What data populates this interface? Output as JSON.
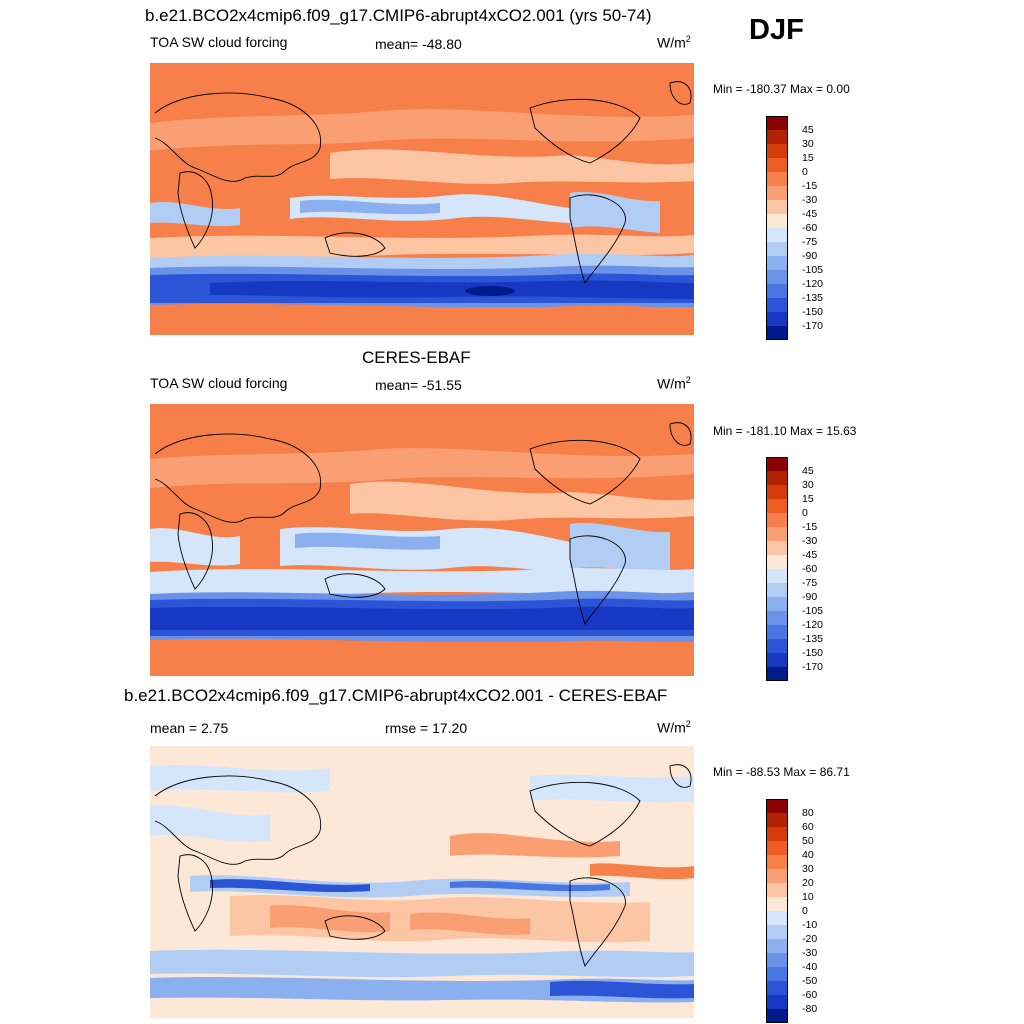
{
  "season": "DJF",
  "panels": [
    {
      "title": "b.e21.BCO2x4cmip6.f09_g17.CMIP6-abrupt4xCO2.001 (yrs 50-74)",
      "left_label": "TOA SW cloud forcing",
      "center_label": "mean= -48.80",
      "units": "W/m",
      "units_exp": "2",
      "minmax": "Min = -180.37 Max =   0.00",
      "colorbar": {
        "labels": [
          "45",
          "30",
          "15",
          "0",
          "-15",
          "-30",
          "-45",
          "-60",
          "-75",
          "-90",
          "-105",
          "-120",
          "-135",
          "-150",
          "-170"
        ],
        "colors": [
          "#8b0000",
          "#b22200",
          "#d63a0b",
          "#ee5c23",
          "#f77f4a",
          "#fa9e73",
          "#fcc5a4",
          "#fde8d8",
          "#d6e6fa",
          "#b2cdf4",
          "#8bb0ef",
          "#6a92e8",
          "#4876e2",
          "#2b55d6",
          "#1638c2",
          "#001a8c"
        ]
      }
    },
    {
      "title": "CERES-EBAF",
      "left_label": "TOA SW cloud forcing",
      "center_label": "mean= -51.55",
      "units": "W/m",
      "units_exp": "2",
      "minmax": "Min = -181.10 Max =  15.63",
      "colorbar": {
        "labels": [
          "45",
          "30",
          "15",
          "0",
          "-15",
          "-30",
          "-45",
          "-60",
          "-75",
          "-90",
          "-105",
          "-120",
          "-135",
          "-150",
          "-170"
        ],
        "colors": [
          "#8b0000",
          "#b22200",
          "#d63a0b",
          "#ee5c23",
          "#f77f4a",
          "#fa9e73",
          "#fcc5a4",
          "#fde8d8",
          "#d6e6fa",
          "#b2cdf4",
          "#8bb0ef",
          "#6a92e8",
          "#4876e2",
          "#2b55d6",
          "#1638c2",
          "#001a8c"
        ]
      }
    },
    {
      "title": "b.e21.BCO2x4cmip6.f09_g17.CMIP6-abrupt4xCO2.001 - CERES-EBAF",
      "left_label": "mean =   2.75",
      "center_label": "rmse =  17.20",
      "units": "W/m",
      "units_exp": "2",
      "minmax": "Min = -88.53 Max =  86.71",
      "colorbar": {
        "labels": [
          "80",
          "60",
          "50",
          "40",
          "30",
          "20",
          "10",
          "0",
          "-10",
          "-20",
          "-30",
          "-40",
          "-50",
          "-60",
          "-80"
        ],
        "colors": [
          "#8b0000",
          "#b22200",
          "#d63a0b",
          "#ee5c23",
          "#f77f4a",
          "#fa9e73",
          "#fcc5a4",
          "#fde8d8",
          "#d6e6fa",
          "#b2cdf4",
          "#8bb0ef",
          "#6a92e8",
          "#4876e2",
          "#2b55d6",
          "#1638c2",
          "#001a8c"
        ]
      }
    }
  ]
}
